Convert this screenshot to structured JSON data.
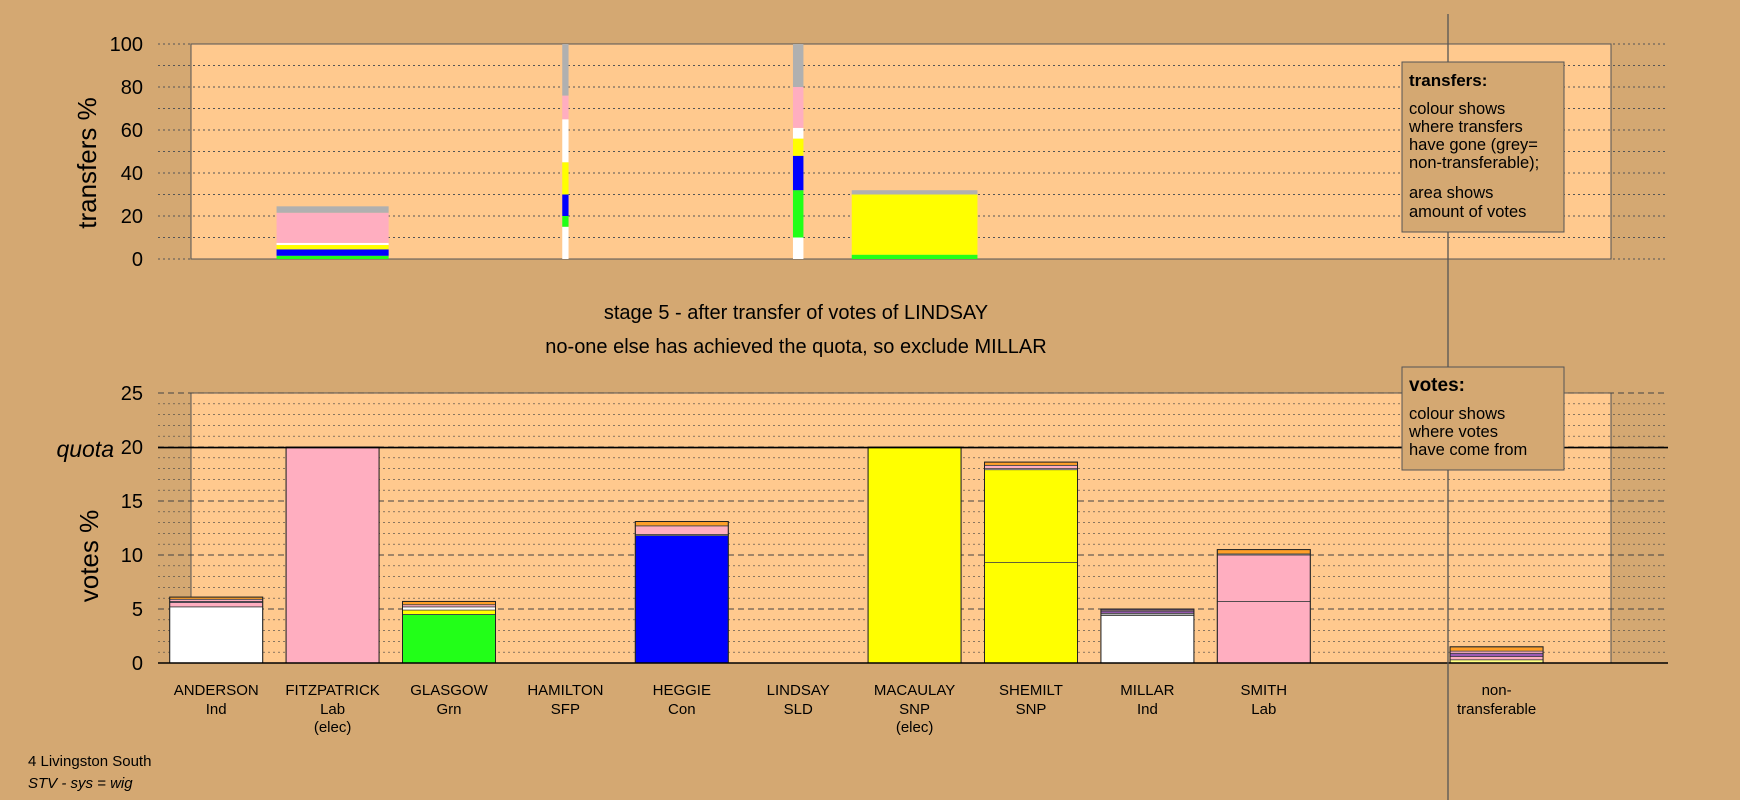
{
  "stage_title": "stage 5 - after transfer of votes of LINDSAY",
  "stage_subtitle": "no-one else has achieved the quota, so exclude MILLAR",
  "footer": {
    "line1": "4 Livingston South",
    "line2": "STV - sys = wig"
  },
  "colors": {
    "Ind": "#ffffff",
    "Lab": "#ffaec0",
    "Grn": "#22ff18",
    "SFP": "#ffff80",
    "Con": "#0000ff",
    "SLD": "#ffff00",
    "SNP": "#ffff00",
    "NT": "#b0b0b0",
    "orange": "#ff9f28",
    "purple": "#9b59b6"
  },
  "legends": {
    "transfers": {
      "title": "transfers:",
      "lines": [
        "colour shows",
        "where transfers",
        "have gone (grey=",
        "non-transferable);"
      ],
      "lines2": [
        "area shows",
        "amount of votes"
      ]
    },
    "votes": {
      "title": "votes:",
      "lines": [
        "colour shows",
        "where votes",
        "have come from"
      ]
    }
  },
  "candidates": [
    {
      "name": "ANDERSON",
      "party": "Ind",
      "note": ""
    },
    {
      "name": "FITZPATRICK",
      "party": "Lab",
      "note": "(elec)"
    },
    {
      "name": "GLASGOW",
      "party": "Grn",
      "note": ""
    },
    {
      "name": "HAMILTON",
      "party": "SFP",
      "note": ""
    },
    {
      "name": "HEGGIE",
      "party": "Con",
      "note": ""
    },
    {
      "name": "LINDSAY",
      "party": "SLD",
      "note": ""
    },
    {
      "name": "MACAULAY",
      "party": "SNP",
      "note": "(elec)"
    },
    {
      "name": "SHEMILT",
      "party": "SNP",
      "note": ""
    },
    {
      "name": "MILLAR",
      "party": "Ind",
      "note": ""
    },
    {
      "name": "SMITH",
      "party": "Lab",
      "note": ""
    },
    {
      "name": "",
      "party": "",
      "note": ""
    },
    {
      "name": "non-",
      "party": "transferable",
      "note": ""
    }
  ],
  "chart_data": [
    {
      "type": "bar",
      "title": "",
      "ylabel": "transfers %",
      "ylim": [
        0,
        100
      ],
      "yticks": [
        0,
        20,
        40,
        60,
        80,
        100
      ],
      "bars": [
        {
          "candidate": "ANDERSON",
          "slot": 1.5,
          "width": 1.07,
          "segments": [
            {
              "color": "#22ff18",
              "value": 1.5
            },
            {
              "color": "#0000ff",
              "value": 3
            },
            {
              "color": "#ffff00",
              "value": 2
            },
            {
              "color": "#ffffff",
              "value": 1
            },
            {
              "color": "#ffaec0",
              "value": 14
            },
            {
              "color": "#b0b0b0",
              "value": 3
            }
          ]
        },
        {
          "candidate": "HAMILTON",
          "slot": 3.5,
          "width": 0.06,
          "segments": [
            {
              "color": "#ffffff",
              "value": 15
            },
            {
              "color": "#22ff18",
              "value": 5
            },
            {
              "color": "#0000ff",
              "value": 10
            },
            {
              "color": "#ffff00",
              "value": 15
            },
            {
              "color": "#ffffff",
              "value": 20
            },
            {
              "color": "#ffaec0",
              "value": 11
            },
            {
              "color": "#b0b0b0",
              "value": 24
            }
          ]
        },
        {
          "candidate": "LINDSAY",
          "slot": 5.5,
          "width": 0.1,
          "segments": [
            {
              "color": "#ffffff",
              "value": 10
            },
            {
              "color": "#22ff18",
              "value": 22
            },
            {
              "color": "#0000ff",
              "value": 16
            },
            {
              "color": "#ffff00",
              "value": 8
            },
            {
              "color": "#ffffff",
              "value": 5
            },
            {
              "color": "#ffaec0",
              "value": 19
            },
            {
              "color": "#b0b0b0",
              "value": 20
            }
          ]
        },
        {
          "candidate": "MACAULAY",
          "slot": 6.5,
          "width": 1.2,
          "segments": [
            {
              "color": "#22ff18",
              "value": 2
            },
            {
              "color": "#ffff00",
              "value": 28
            },
            {
              "color": "#b0b0b0",
              "value": 2
            }
          ]
        }
      ]
    },
    {
      "type": "bar",
      "title": "",
      "ylabel": "votes %",
      "ylim": [
        0,
        25
      ],
      "yticks": [
        0,
        5,
        10,
        15,
        20,
        25
      ],
      "quota": 20,
      "quota_label": "quota",
      "categories": [
        "ANDERSON",
        "FITZPATRICK",
        "GLASGOW",
        "HAMILTON",
        "HEGGIE",
        "LINDSAY",
        "MACAULAY",
        "SHEMILT",
        "MILLAR",
        "SMITH",
        "",
        "non-transferable"
      ],
      "bars": [
        {
          "slot": 0.5,
          "segments": [
            {
              "color": "#ffffff",
              "value": 5.2
            },
            {
              "color": "#ffaec0",
              "value": 0.4
            },
            {
              "color": "#9b59b6",
              "value": 0.1
            },
            {
              "color": "#ffaec0",
              "value": 0.2
            },
            {
              "color": "#ff9f28",
              "value": 0.2
            }
          ]
        },
        {
          "slot": 1.5,
          "segments": [
            {
              "color": "#ffaec0",
              "value": 20
            }
          ]
        },
        {
          "slot": 2.5,
          "segments": [
            {
              "color": "#22ff18",
              "value": 4.5
            },
            {
              "color": "#ffff00",
              "value": 0.4
            },
            {
              "color": "#ffffff",
              "value": 0.3
            },
            {
              "color": "#ffaec0",
              "value": 0.2
            },
            {
              "color": "#ff9f28",
              "value": 0.3
            }
          ]
        },
        {
          "slot": 4.5,
          "segments": [
            {
              "color": "#0000ff",
              "value": 11.8
            },
            {
              "color": "#ffffff",
              "value": 0.1
            },
            {
              "color": "#ffaec0",
              "value": 0.8
            },
            {
              "color": "#ff9f28",
              "value": 0.4
            }
          ]
        },
        {
          "slot": 6.5,
          "segments": [
            {
              "color": "#ffff00",
              "value": 20
            }
          ]
        },
        {
          "slot": 7.5,
          "segments": [
            {
              "color": "#ffff00",
              "value": 9.3
            },
            {
              "color": "#ffff00",
              "value": 8.6
            },
            {
              "color": "#ffffff",
              "value": 0.1
            },
            {
              "color": "#ffaec0",
              "value": 0.3
            },
            {
              "color": "#ff9f28",
              "value": 0.3
            }
          ]
        },
        {
          "slot": 8.5,
          "segments": [
            {
              "color": "#ffffff",
              "value": 4.4
            },
            {
              "color": "#b0b0b0",
              "value": 0.2
            },
            {
              "color": "#9b59b6",
              "value": 0.2
            },
            {
              "color": "#ffaec0",
              "value": 0.1
            },
            {
              "color": "#9b59b6",
              "value": 0.1
            }
          ]
        },
        {
          "slot": 9.5,
          "segments": [
            {
              "color": "#ffaec0",
              "value": 5.7
            },
            {
              "color": "#ffaec0",
              "value": 4.3
            },
            {
              "color": "#ffffff",
              "value": 0.1
            },
            {
              "color": "#ff9f28",
              "value": 0.4
            }
          ]
        },
        {
          "slot": 11.5,
          "segments": [
            {
              "color": "#ffff80",
              "value": 0.3
            },
            {
              "color": "#ffaec0",
              "value": 0.3
            },
            {
              "color": "#9b59b6",
              "value": 0.3
            },
            {
              "color": "#ffaec0",
              "value": 0.2
            },
            {
              "color": "#ff9f28",
              "value": 0.4
            }
          ]
        }
      ]
    }
  ]
}
